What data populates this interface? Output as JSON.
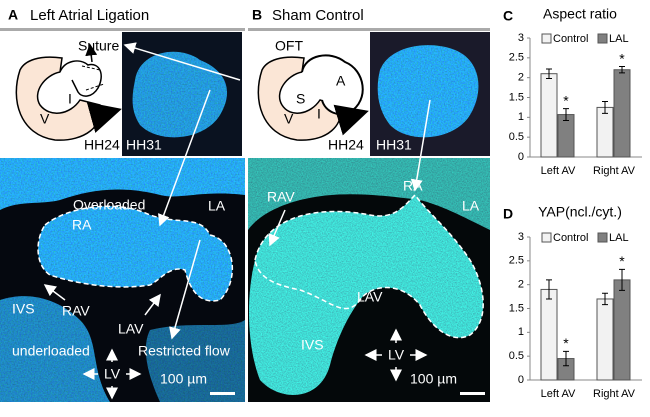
{
  "panels": [
    {
      "letter": "A",
      "title": "Left Atrial Ligation",
      "suture": "Suture",
      "v": "V",
      "i": "I",
      "hh24": "HH24",
      "hh31": "HH31",
      "overloaded": "Overloaded",
      "ra": "RA",
      "la": "LA",
      "ivs": "IVS",
      "rav": "RAV",
      "lav": "LAV",
      "underloaded": "underloaded",
      "restricted": "Restricted flow",
      "lv": "LV",
      "scale": "100 µm"
    },
    {
      "letter": "B",
      "title": "Sham Control",
      "oft": "OFT",
      "a": "A",
      "s": "S",
      "v": "V",
      "i": "I",
      "hh24": "HH24",
      "hh31": "HH31",
      "ra": "RA",
      "la": "LA",
      "rav": "RAV",
      "lav": "LAV",
      "ivs": "IVS",
      "lv": "LV",
      "scale": "100 µm"
    }
  ],
  "chart_data": [
    {
      "type": "bar",
      "letter": "C",
      "title": "Aspect ratio",
      "categories": [
        "Left AV",
        "Right AV"
      ],
      "series": [
        {
          "name": "Control",
          "color": "#f2f2f2",
          "values": [
            2.1,
            1.25
          ],
          "errors": [
            0.12,
            0.15
          ]
        },
        {
          "name": "LAL",
          "color": "#808080",
          "values": [
            1.07,
            2.2
          ],
          "errors": [
            0.15,
            0.08
          ],
          "significance": [
            "*",
            "*"
          ]
        }
      ],
      "ylim": [
        0,
        3
      ],
      "yticks": [
        0,
        0.5,
        1,
        1.5,
        2,
        2.5,
        3
      ],
      "grid": false
    },
    {
      "type": "bar",
      "letter": "D",
      "title": "YAP(ncl./cyt.)",
      "categories": [
        "Left AV",
        "Right AV"
      ],
      "series": [
        {
          "name": "Control",
          "color": "#f2f2f2",
          "values": [
            1.9,
            1.7
          ],
          "errors": [
            0.2,
            0.12
          ]
        },
        {
          "name": "LAL",
          "color": "#808080",
          "values": [
            0.45,
            2.1
          ],
          "errors": [
            0.15,
            0.22
          ],
          "significance": [
            "*",
            "*"
          ]
        }
      ],
      "ylim": [
        0,
        3
      ],
      "yticks": [
        0,
        0.5,
        1,
        1.5,
        2,
        2.5,
        3
      ],
      "grid": false
    }
  ]
}
